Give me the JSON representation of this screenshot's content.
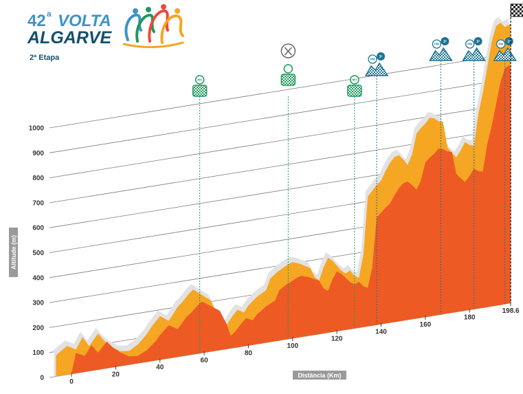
{
  "header": {
    "edition_number": "42",
    "edition_suffix": "a",
    "title_top": "VOLTA",
    "title_bottom": "ALGARVE",
    "stage": "2ª Etapa"
  },
  "colors": {
    "sprint_green": "#1a9a5a",
    "kom_blue": "#1d7393",
    "profile_orange": "#f5a623",
    "profile_red": "#ee5a24",
    "logo_light_blue": "#3d93c7",
    "logo_dark_blue": "#12506d"
  },
  "chart_data": {
    "type": "area",
    "title": "2ª Etapa",
    "xlabel": "Distância (Km)",
    "ylabel": "Altitude (m)",
    "xlim": [
      -7,
      198.6
    ],
    "ylim": [
      0,
      1100
    ],
    "x_ticks": [
      0,
      20,
      40,
      60,
      80,
      100,
      120,
      140,
      160,
      180,
      198.6
    ],
    "x_tick_labels": [
      "0",
      "20",
      "40",
      "60",
      "80",
      "100",
      "120",
      "140",
      "160",
      "180",
      "198.6"
    ],
    "y_ticks": [
      0,
      100,
      200,
      300,
      400,
      500,
      600,
      700,
      800,
      900,
      1000
    ],
    "y_tick_labels": [
      "0",
      "100",
      "200",
      "300",
      "400",
      "500",
      "600",
      "700",
      "800",
      "900",
      "1000"
    ],
    "series": [
      {
        "name": "Perfil",
        "x": [
          -7,
          -2,
          2,
          5,
          8,
          12,
          15,
          18,
          22,
          26,
          30,
          34,
          36,
          40,
          44,
          48,
          50,
          53,
          55,
          58,
          60,
          63,
          66,
          68,
          70,
          73,
          75,
          78,
          80,
          84,
          88,
          90,
          93,
          96,
          98,
          100,
          103,
          106,
          108,
          110,
          112,
          114,
          116,
          118,
          122,
          124,
          126,
          128,
          130,
          132,
          134,
          136,
          138,
          140,
          142,
          144,
          146,
          148,
          150,
          152,
          154,
          156,
          158,
          160,
          162,
          164,
          166,
          168,
          170,
          172,
          174,
          176,
          178,
          180,
          182,
          184,
          186,
          188,
          190,
          192,
          194,
          196,
          198.6
        ],
        "y": [
          85,
          115,
          95,
          140,
          100,
          145,
          110,
          85,
          60,
          55,
          75,
          110,
          135,
          175,
          150,
          200,
          215,
          245,
          260,
          240,
          225,
          205,
          140,
          80,
          95,
          130,
          150,
          135,
          160,
          190,
          210,
          255,
          275,
          290,
          300,
          305,
          295,
          280,
          270,
          230,
          215,
          265,
          300,
          285,
          240,
          225,
          235,
          210,
          200,
          290,
          520,
          540,
          560,
          575,
          610,
          640,
          660,
          665,
          645,
          620,
          660,
          740,
          760,
          775,
          795,
          790,
          775,
          770,
          665,
          640,
          620,
          645,
          675,
          660,
          655,
          780,
          860,
          960,
          1060,
          1120,
          1130,
          1110,
          1120
        ]
      }
    ],
    "markers": [
      {
        "type": "sprint",
        "km": 58,
        "label": "MV"
      },
      {
        "type": "feed",
        "km": 98,
        "label": ""
      },
      {
        "type": "sprint",
        "km": 128,
        "label": "MV"
      },
      {
        "type": "kom",
        "km": 138,
        "category": "3ª",
        "label": "PM"
      },
      {
        "type": "kom",
        "km": 167,
        "category": "3ª",
        "label": "PM"
      },
      {
        "type": "kom",
        "km": 182,
        "category": "2ª",
        "label": "PM"
      },
      {
        "type": "kom",
        "km": 196,
        "category": "1ª",
        "label": "PM"
      },
      {
        "type": "finish",
        "km": 198.6,
        "label": ""
      }
    ]
  }
}
